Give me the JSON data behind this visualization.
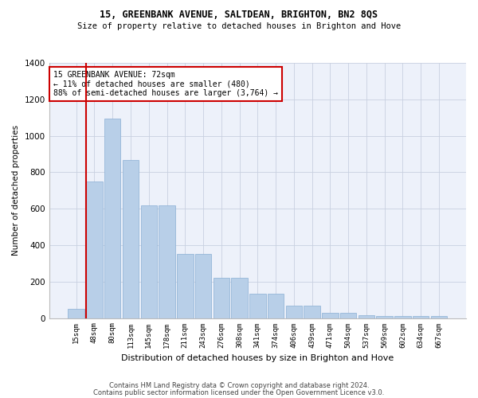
{
  "title": "15, GREENBANK AVENUE, SALTDEAN, BRIGHTON, BN2 8QS",
  "subtitle": "Size of property relative to detached houses in Brighton and Hove",
  "xlabel": "Distribution of detached houses by size in Brighton and Hove",
  "ylabel": "Number of detached properties",
  "categories": [
    "15sqm",
    "48sqm",
    "80sqm",
    "113sqm",
    "145sqm",
    "178sqm",
    "211sqm",
    "243sqm",
    "276sqm",
    "308sqm",
    "341sqm",
    "374sqm",
    "406sqm",
    "439sqm",
    "471sqm",
    "504sqm",
    "537sqm",
    "569sqm",
    "602sqm",
    "634sqm",
    "667sqm"
  ],
  "values": [
    50,
    750,
    1095,
    865,
    620,
    620,
    350,
    350,
    220,
    220,
    135,
    135,
    68,
    68,
    30,
    30,
    15,
    12,
    10,
    10,
    10
  ],
  "bar_color": "#b8cfe8",
  "bar_edge_color": "#8aafd4",
  "background_color": "#edf1fa",
  "grid_color": "#c8d0e0",
  "vline_color": "#cc0000",
  "vline_x_index": 1,
  "annotation_text": "15 GREENBANK AVENUE: 72sqm\n← 11% of detached houses are smaller (480)\n88% of semi-detached houses are larger (3,764) →",
  "ylim": [
    0,
    1400
  ],
  "yticks": [
    0,
    200,
    400,
    600,
    800,
    1000,
    1200,
    1400
  ],
  "footer1": "Contains HM Land Registry data © Crown copyright and database right 2024.",
  "footer2": "Contains public sector information licensed under the Open Government Licence v3.0."
}
